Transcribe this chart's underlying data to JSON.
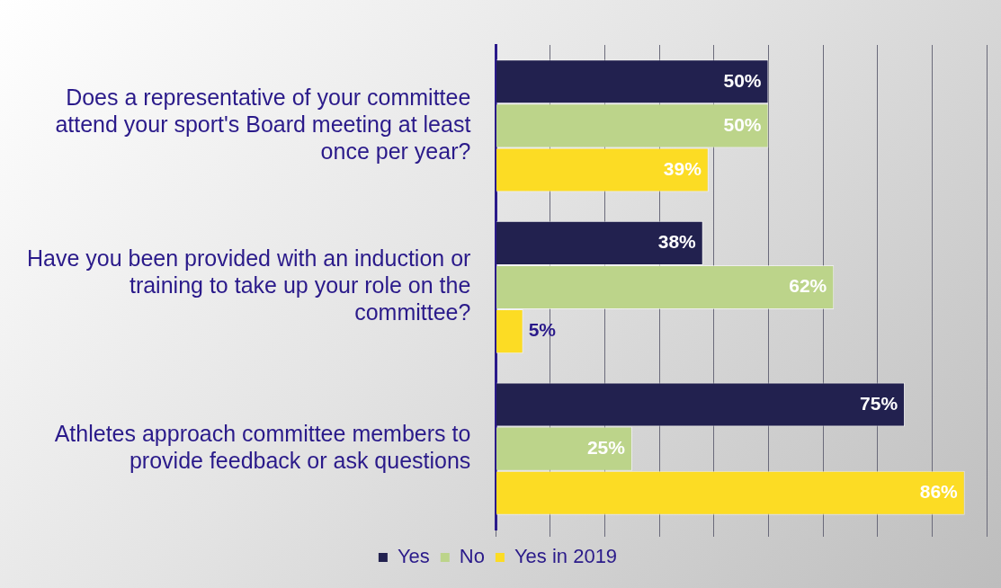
{
  "chart_data": {
    "type": "bar",
    "orientation": "horizontal",
    "categories": [
      "Does a representative of your committee attend your sport's Board meeting at least once per year?",
      "Have you been provided with an induction or training to take up your role on the committee?",
      "Athletes approach committee members to provide feedback or ask questions"
    ],
    "series": [
      {
        "name": "Yes",
        "color": "#22214f",
        "values": [
          50,
          38,
          75
        ],
        "value_labels": [
          "50%",
          "38%",
          "75%"
        ]
      },
      {
        "name": "No",
        "color": "#bcd48a",
        "values": [
          50,
          62,
          25
        ],
        "value_labels": [
          "50%",
          "62%",
          "25%"
        ]
      },
      {
        "name": "Yes in 2019",
        "color": "#fcdc24",
        "values": [
          39,
          5,
          86
        ],
        "value_labels": [
          "39%",
          "5%",
          "86%"
        ]
      }
    ],
    "tick_labels": "y",
    "grid": "x",
    "legend": "bottom"
  }
}
